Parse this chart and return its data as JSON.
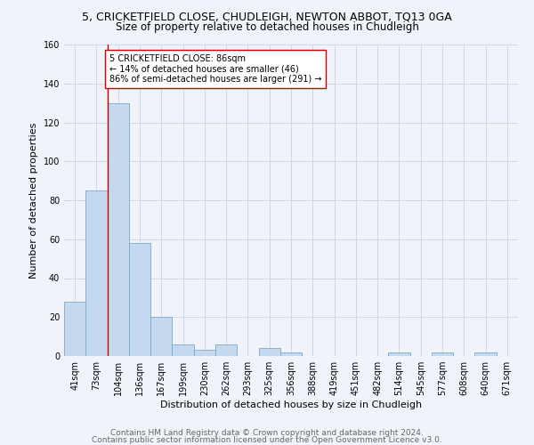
{
  "title": "5, CRICKETFIELD CLOSE, CHUDLEIGH, NEWTON ABBOT, TQ13 0GA",
  "subtitle": "Size of property relative to detached houses in Chudleigh",
  "xlabel": "Distribution of detached houses by size in Chudleigh",
  "ylabel": "Number of detached properties",
  "footer1": "Contains HM Land Registry data © Crown copyright and database right 2024.",
  "footer2": "Contains public sector information licensed under the Open Government Licence v3.0.",
  "categories": [
    "41sqm",
    "73sqm",
    "104sqm",
    "136sqm",
    "167sqm",
    "199sqm",
    "230sqm",
    "262sqm",
    "293sqm",
    "325sqm",
    "356sqm",
    "388sqm",
    "419sqm",
    "451sqm",
    "482sqm",
    "514sqm",
    "545sqm",
    "577sqm",
    "608sqm",
    "640sqm",
    "671sqm"
  ],
  "values": [
    28,
    85,
    130,
    58,
    20,
    6,
    3,
    6,
    0,
    4,
    2,
    0,
    0,
    0,
    0,
    2,
    0,
    2,
    0,
    2,
    0
  ],
  "bar_color": "#c5d9ee",
  "bar_edge_color": "#7aaad0",
  "vline_x": 1.5,
  "vline_color": "#cc0000",
  "annotation_box_text": "5 CRICKETFIELD CLOSE: 86sqm\n← 14% of detached houses are smaller (46)\n86% of semi-detached houses are larger (291) →",
  "annotation_box_color": "#ffffff",
  "annotation_box_edge_color": "#cc0000",
  "ylim": [
    0,
    160
  ],
  "yticks": [
    0,
    20,
    40,
    60,
    80,
    100,
    120,
    140,
    160
  ],
  "bg_color": "#f0f4fa",
  "grid_color": "#ccd9e8",
  "title_fontsize": 9,
  "subtitle_fontsize": 8.5,
  "axis_label_fontsize": 8,
  "tick_fontsize": 7,
  "footer_fontsize": 6.5
}
